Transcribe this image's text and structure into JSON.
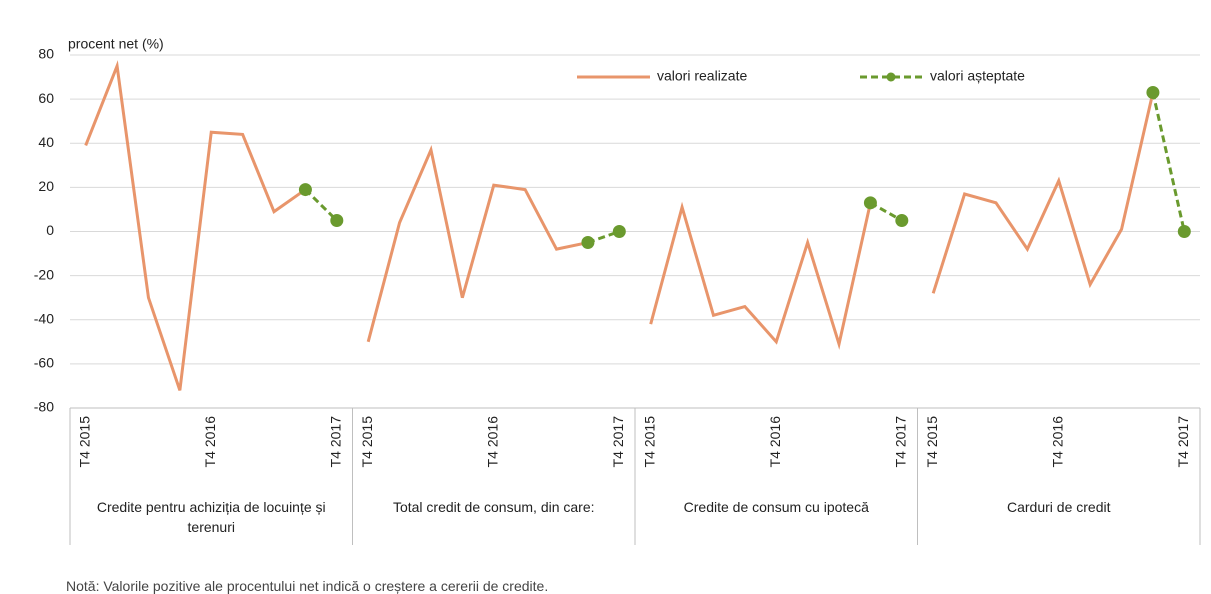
{
  "chart_data": {
    "type": "line",
    "y_label": "procent net (%)",
    "ylim": [
      -80,
      80
    ],
    "yticks": [
      -80,
      -60,
      -40,
      -20,
      0,
      20,
      40,
      60,
      80
    ],
    "grid": true,
    "legend": "top-right",
    "series": [
      {
        "name": "valori realizate",
        "color": "#e8956b",
        "style": "solid"
      },
      {
        "name": "valori așteptate",
        "color": "#6a9a2e",
        "style": "dashed"
      }
    ],
    "groups": [
      {
        "label": "Credite pentru achiziția de locuințe și terenuri",
        "categories": [
          "T4 2015",
          null,
          null,
          null,
          "T4 2016",
          null,
          null,
          null,
          "T4 2017"
        ],
        "values": [
          [
            39,
            75,
            -30,
            -72,
            45,
            44,
            9,
            19,
            null
          ],
          [
            null,
            null,
            null,
            null,
            null,
            null,
            null,
            19,
            5
          ]
        ]
      },
      {
        "label": "Total credit de consum,  din care:",
        "categories": [
          "T4 2015",
          null,
          null,
          null,
          "T4 2016",
          null,
          null,
          null,
          "T4 2017"
        ],
        "values": [
          [
            -50,
            4,
            37,
            -30,
            21,
            19,
            -8,
            -5,
            null
          ],
          [
            null,
            null,
            null,
            null,
            null,
            null,
            null,
            -5,
            0
          ]
        ]
      },
      {
        "label": "Credite de consum cu ipotecă",
        "categories": [
          "T4 2015",
          null,
          null,
          null,
          "T4 2016",
          null,
          null,
          null,
          "T4 2017"
        ],
        "values": [
          [
            -42,
            11,
            -38,
            -34,
            -50,
            -5,
            -51,
            13,
            null
          ],
          [
            null,
            null,
            null,
            null,
            null,
            null,
            null,
            13,
            5
          ]
        ]
      },
      {
        "label": "Carduri de credit",
        "categories": [
          "T4 2015",
          null,
          null,
          null,
          "T4 2016",
          null,
          null,
          null,
          "T4 2017"
        ],
        "values": [
          [
            -28,
            17,
            13,
            -8,
            23,
            -24,
            1,
            63,
            null
          ],
          [
            null,
            null,
            null,
            null,
            null,
            null,
            null,
            63,
            0
          ]
        ]
      }
    ],
    "note": "Notă: Valorile pozitive ale procentului net indică o creștere  a cererii de credite."
  }
}
